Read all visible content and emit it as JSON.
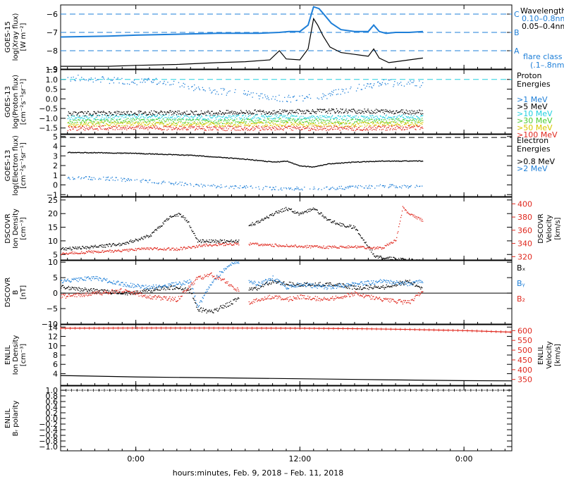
{
  "colors": {
    "black": "#000000",
    "blue": "#1e7fd8",
    "cyan": "#22d0e0",
    "green": "#4ccc30",
    "yellow": "#d8c800",
    "orange": "#e89010",
    "red": "#e0281e",
    "axis": "#000000"
  },
  "xaxis": {
    "label": "hours:minutes, Feb.  9, 2018 – Feb. 11, 2018",
    "range_hours": [
      -5.5,
      27.5
    ],
    "ticks": [
      {
        "hour": 0,
        "label": "0:00"
      },
      {
        "hour": 12,
        "label": "12:00"
      },
      {
        "hour": 24,
        "label": "0:00"
      }
    ]
  },
  "chart_data": [
    {
      "id": "xray",
      "type": "line",
      "ylabel": [
        "GOES-15",
        "log(Xray flux)",
        "[W m⁻²]"
      ],
      "ylim": [
        -9,
        -5.5
      ],
      "yticks": [
        -9,
        -8,
        -7,
        -6
      ],
      "legend": {
        "title": "Wavelength",
        "entries": [
          {
            "text": "0.10–0.8nm",
            "color": "blue"
          },
          {
            "text": "0.05–0.4nm",
            "color": "black"
          }
        ],
        "footer": [
          "flare class",
          "(.1–.8nm)"
        ]
      },
      "flare_classes": [
        {
          "y": -6,
          "label": "C"
        },
        {
          "y": -7,
          "label": "B"
        },
        {
          "y": -8,
          "label": "A"
        }
      ],
      "series": [
        {
          "name": "0.10–0.8nm",
          "color": "blue",
          "style": "line",
          "x": [
            -5.5,
            -2,
            0,
            3,
            6,
            9,
            10.5,
            11.2,
            12,
            12.6,
            13.0,
            13.4,
            13.8,
            14.3,
            15,
            16,
            17,
            17.4,
            17.8,
            18.3,
            19,
            20,
            21
          ],
          "y": [
            -7.25,
            -7.2,
            -7.15,
            -7.1,
            -7.05,
            -7.05,
            -7.0,
            -6.95,
            -6.95,
            -6.6,
            -5.6,
            -5.7,
            -6.05,
            -6.5,
            -6.85,
            -6.95,
            -6.95,
            -6.6,
            -6.95,
            -7.05,
            -7.0,
            -7.0,
            -6.95
          ]
        },
        {
          "name": "0.05–0.4nm",
          "color": "black",
          "style": "dots",
          "x": [
            -5.5,
            -2,
            0,
            3,
            6,
            8,
            9.8,
            10.5,
            11,
            12,
            12.6,
            13.0,
            13.3,
            13.7,
            14.2,
            15,
            16,
            17,
            17.4,
            17.8,
            18.5,
            19,
            20,
            21
          ],
          "y": [
            -8.85,
            -8.85,
            -8.8,
            -8.75,
            -8.65,
            -8.6,
            -8.5,
            -8.0,
            -8.45,
            -8.5,
            -7.9,
            -6.25,
            -6.6,
            -7.2,
            -7.8,
            -8.1,
            -8.2,
            -8.3,
            -7.9,
            -8.4,
            -8.65,
            -8.6,
            -8.5,
            -8.4
          ]
        }
      ]
    },
    {
      "id": "proton",
      "type": "scatter",
      "ylabel": [
        "GOES-13",
        "log(Proton flux)",
        "[cm⁻²s⁻¹sr⁻¹]"
      ],
      "ylim": [
        -1.8,
        1.5
      ],
      "yticks": [
        -1.5,
        -1.0,
        -0.5,
        0.0,
        0.5,
        1.0,
        1.5
      ],
      "reference_line": {
        "y": 1.0,
        "color": "cyan"
      },
      "legend": {
        "title": [
          "Proton",
          "Energies"
        ],
        "entries": [
          {
            "text": ">1 MeV",
            "color": "blue"
          },
          {
            "text": ">5 MeV",
            "color": "black"
          },
          {
            "text": ">10 MeV",
            "color": "cyan"
          },
          {
            "text": ">30 MeV",
            "color": "green"
          },
          {
            "text": ">50 MeV",
            "color": "yellow"
          },
          {
            "text": ">100 MeV",
            "color": "red"
          }
        ]
      },
      "series": [
        {
          "name": ">1 MeV",
          "color": "blue",
          "x": [
            -5,
            -2,
            0,
            2,
            4,
            6,
            8,
            10,
            12,
            14,
            16,
            18,
            20,
            21
          ],
          "y": [
            1.1,
            1.0,
            0.9,
            0.9,
            0.6,
            0.4,
            0.3,
            0.1,
            0.0,
            0.2,
            0.6,
            0.85,
            0.8,
            0.8
          ]
        },
        {
          "name": ">5 MeV",
          "color": "black",
          "x": [
            -5,
            0,
            5,
            10,
            15,
            21
          ],
          "y": [
            -0.75,
            -0.7,
            -0.7,
            -0.65,
            -0.6,
            -0.65
          ]
        },
        {
          "name": ">10 MeV",
          "color": "cyan",
          "x": [
            -5,
            0,
            5,
            10,
            15,
            21
          ],
          "y": [
            -0.95,
            -0.9,
            -0.95,
            -0.9,
            -0.95,
            -0.9
          ]
        },
        {
          "name": ">30 MeV",
          "color": "green",
          "x": [
            -5,
            0,
            5,
            10,
            15,
            21
          ],
          "y": [
            -1.15,
            -1.1,
            -1.15,
            -1.1,
            -1.15,
            -1.1
          ]
        },
        {
          "name": ">50 MeV",
          "color": "yellow",
          "x": [
            -5,
            0,
            5,
            10,
            15,
            21
          ],
          "y": [
            -1.3,
            -1.25,
            -1.3,
            -1.28,
            -1.3,
            -1.25
          ]
        },
        {
          "name": ">100 MeV",
          "color": "red",
          "x": [
            -5,
            0,
            5,
            10,
            15,
            21
          ],
          "y": [
            -1.5,
            -1.45,
            -1.5,
            -1.48,
            -1.5,
            -1.45
          ]
        }
      ]
    },
    {
      "id": "electron",
      "type": "scatter",
      "ylabel": [
        "GOES-13",
        "log(Electron flux)",
        "[cm⁻²s⁻¹sr⁻¹]"
      ],
      "ylim": [
        -1.2,
        5.2
      ],
      "yticks": [
        -1,
        0,
        1,
        2,
        3,
        4,
        5
      ],
      "reference_line": {
        "y": 4.9,
        "color": "black",
        "dashed": true
      },
      "legend": {
        "title": [
          "Electron",
          "Energies"
        ],
        "entries": [
          {
            "text": ">0.8 MeV",
            "color": "black"
          },
          {
            "text": ">2 MeV",
            "color": "blue"
          }
        ]
      },
      "series": [
        {
          "name": ">0.8 MeV",
          "color": "black",
          "x": [
            -5,
            -2,
            0,
            2,
            4,
            6,
            8,
            10,
            11,
            12,
            13,
            14,
            16,
            18,
            21
          ],
          "y": [
            3.4,
            3.35,
            3.3,
            3.2,
            3.1,
            2.9,
            2.7,
            2.4,
            2.5,
            2.0,
            1.9,
            2.2,
            2.4,
            2.5,
            2.5
          ]
        },
        {
          "name": ">2 MeV",
          "color": "blue",
          "x": [
            -5,
            -2,
            0,
            2,
            4,
            6,
            8,
            10,
            12,
            14,
            16,
            18,
            21
          ],
          "y": [
            0.8,
            0.7,
            0.5,
            0.3,
            0.1,
            -0.1,
            -0.2,
            -0.3,
            -0.35,
            -0.3,
            -0.2,
            -0.1,
            -0.1
          ]
        }
      ]
    },
    {
      "id": "dscovr_density",
      "type": "scatter",
      "ylabel": [
        "DSCOVR",
        "Ion Density",
        "[cm⁻³]"
      ],
      "ylim": [
        3,
        26
      ],
      "yticks": [
        5,
        10,
        15,
        20,
        25
      ],
      "ylabel_right": [
        "DSCOVR",
        "Velocity",
        "[km/s]"
      ],
      "ylim_right": [
        315,
        410
      ],
      "yticks_right": [
        320,
        340,
        360,
        380,
        400
      ],
      "series": [
        {
          "name": "Ion Density",
          "color": "black",
          "axis": "left",
          "x": [
            -5.5,
            -3,
            -1,
            1,
            2.5,
            3.2,
            3.8,
            4.5,
            6,
            7.5,
            null,
            8.2,
            9,
            10,
            11,
            12,
            13,
            14,
            15,
            16,
            17,
            17.5,
            18,
            19,
            20,
            21
          ],
          "y": [
            7,
            8,
            9,
            12,
            19,
            20,
            17,
            10,
            10,
            10,
            null,
            16,
            17,
            20,
            22,
            20,
            22,
            18,
            16,
            15,
            8,
            4.5,
            4,
            3.5,
            3,
            2.5
          ]
        },
        {
          "name": "Velocity",
          "color": "red",
          "axis": "right",
          "x": [
            -5.5,
            -3,
            -1,
            1,
            3,
            5,
            7.5,
            null,
            8.2,
            10,
            12,
            14,
            16,
            17,
            18,
            19,
            19.5,
            20,
            20.5,
            21
          ],
          "y": [
            325,
            328,
            330,
            333,
            332,
            338,
            340,
            null,
            340,
            338,
            336,
            335,
            336,
            333,
            334,
            345,
            395,
            385,
            380,
            375
          ]
        }
      ]
    },
    {
      "id": "dscovr_b",
      "type": "scatter",
      "ylabel": [
        "DSCOVR",
        "B",
        "[nT]"
      ],
      "ylim": [
        -10,
        10.5
      ],
      "yticks": [
        -10,
        -5,
        0,
        5,
        10
      ],
      "zero_line": true,
      "legend": {
        "entries": [
          {
            "text": "Bₓ",
            "color": "black"
          },
          {
            "text": "Bᵧ",
            "color": "blue"
          },
          {
            "text": "B₂",
            "color": "red"
          }
        ]
      },
      "series": [
        {
          "name": "Bx",
          "color": "black",
          "x": [
            -5.5,
            -3,
            -1,
            1,
            2.5,
            4,
            4.5,
            5.5,
            7,
            7.5,
            null,
            8.2,
            9,
            10,
            11,
            12,
            14,
            16,
            18,
            20,
            21
          ],
          "y": [
            2,
            1,
            0,
            1,
            2,
            1,
            -5,
            -6,
            -3,
            -1,
            null,
            1,
            2,
            4,
            3,
            3,
            3,
            2,
            2,
            4,
            1
          ]
        },
        {
          "name": "By",
          "color": "blue",
          "x": [
            -5.5,
            -3,
            -1,
            1,
            3,
            4,
            4.5,
            5,
            6,
            7,
            7.5,
            null,
            8.2,
            9,
            10,
            11,
            12,
            14,
            16,
            18,
            20,
            21
          ],
          "y": [
            4,
            5,
            3,
            2,
            3,
            4,
            -5,
            0,
            6,
            10,
            10,
            null,
            4,
            3,
            5,
            2,
            3,
            2,
            3,
            4,
            3,
            4
          ]
        },
        {
          "name": "Bz",
          "color": "red",
          "x": [
            -5.5,
            -3,
            -1,
            1,
            3,
            4.5,
            5.5,
            6.5,
            7.5,
            null,
            8.2,
            9,
            10,
            11,
            12,
            14,
            16,
            18,
            20,
            21
          ],
          "y": [
            -1,
            0,
            1,
            -1,
            -2,
            5,
            6,
            4,
            1,
            null,
            -3,
            -2,
            -1,
            -2,
            -1,
            -2,
            0,
            -2,
            -3,
            1
          ]
        }
      ]
    },
    {
      "id": "enlil_density",
      "type": "line",
      "ylabel": [
        "ENLIL",
        "Ion Density",
        "[cm⁻³]"
      ],
      "ylim": [
        1.5,
        14.5
      ],
      "yticks": [
        4,
        6,
        8,
        10,
        12,
        14
      ],
      "ylabel_right": [
        "ENLIL",
        "Velocity",
        "[km/s]"
      ],
      "ylim_right": [
        320,
        630
      ],
      "yticks_right": [
        350,
        400,
        450,
        500,
        550,
        600
      ],
      "series": [
        {
          "name": "Ion Density",
          "color": "black",
          "axis": "left",
          "x": [
            -5.5,
            0,
            6,
            12,
            18,
            24,
            27.5
          ],
          "y": [
            3.6,
            3.3,
            3.1,
            2.9,
            2.7,
            2.5,
            2.45
          ]
        },
        {
          "name": "Velocity",
          "color": "red",
          "axis": "right",
          "x": [
            -5.5,
            0,
            6,
            12,
            16,
            20,
            24,
            27.5
          ],
          "y": [
            612,
            613,
            613,
            612,
            610,
            606,
            600,
            592
          ]
        }
      ]
    },
    {
      "id": "enlil_polarity",
      "type": "line",
      "ylabel": [
        "ENLIL",
        "Bᵣ polarity"
      ],
      "ylim": [
        -1.15,
        1.15
      ],
      "yticks": [
        -1.0,
        -0.8,
        -0.6,
        -0.4,
        -0.2,
        0.0,
        0.2,
        0.4,
        0.6,
        0.8,
        1.0
      ],
      "series": [
        {
          "name": "polarity",
          "color": "black",
          "axis": "left",
          "x": [
            -5.5,
            27.5
          ],
          "y": [
            1.0,
            1.0
          ]
        }
      ]
    }
  ]
}
